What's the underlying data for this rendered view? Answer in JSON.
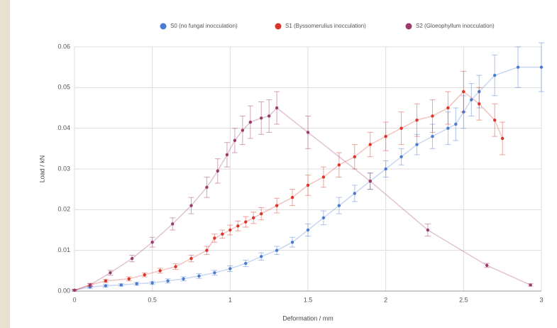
{
  "chart_data": {
    "type": "scatter",
    "xlabel": "Deformation / mm",
    "ylabel": "Load / kN",
    "xlim": [
      0,
      3
    ],
    "ylim": [
      0,
      0.06
    ],
    "xticks": [
      0,
      0.5,
      1,
      1.5,
      2,
      2.5,
      3
    ],
    "yticks": [
      {
        "value": 0,
        "label": "0.00"
      },
      {
        "value": 0.01,
        "label": "0.01"
      },
      {
        "value": 0.02,
        "label": "0.02"
      },
      {
        "value": 0.03,
        "label": "0.03"
      },
      {
        "value": 0.04,
        "label": "0.04"
      },
      {
        "value": 0.05,
        "label": "0.05"
      },
      {
        "value": 0.06,
        "label": "0.06"
      }
    ],
    "grid": true,
    "series": [
      {
        "name": "S0 (no fungal inocculation)",
        "color": "#4a7bd0",
        "x": [
          0,
          0.1,
          0.2,
          0.3,
          0.4,
          0.5,
          0.6,
          0.7,
          0.8,
          0.9,
          1.0,
          1.1,
          1.2,
          1.3,
          1.4,
          1.5,
          1.6,
          1.7,
          1.8,
          1.9,
          2.0,
          2.1,
          2.2,
          2.3,
          2.4,
          2.45,
          2.5,
          2.55,
          2.6,
          2.7,
          2.85,
          3.0
        ],
        "values": [
          0.0002,
          0.001,
          0.0013,
          0.0015,
          0.0018,
          0.002,
          0.0025,
          0.003,
          0.0037,
          0.0045,
          0.0055,
          0.0068,
          0.0085,
          0.01,
          0.012,
          0.015,
          0.018,
          0.021,
          0.024,
          0.027,
          0.03,
          0.033,
          0.036,
          0.038,
          0.04,
          0.041,
          0.044,
          0.047,
          0.049,
          0.053,
          0.055,
          0.055
        ],
        "errors": [
          0.0002,
          0.0003,
          0.0003,
          0.0003,
          0.0004,
          0.0004,
          0.0005,
          0.0005,
          0.0006,
          0.0006,
          0.0007,
          0.0008,
          0.0009,
          0.001,
          0.0012,
          0.0015,
          0.0017,
          0.002,
          0.002,
          0.002,
          0.002,
          0.002,
          0.0025,
          0.003,
          0.004,
          0.004,
          0.004,
          0.004,
          0.004,
          0.005,
          0.005,
          0.006
        ]
      },
      {
        "name": "S1 (Byssomerulius inocculation)",
        "color": "#d9352a",
        "x": [
          0,
          0.1,
          0.2,
          0.35,
          0.45,
          0.55,
          0.65,
          0.75,
          0.85,
          0.9,
          0.95,
          1.0,
          1.05,
          1.1,
          1.15,
          1.2,
          1.3,
          1.4,
          1.5,
          1.6,
          1.7,
          1.8,
          1.9,
          2.0,
          2.1,
          2.2,
          2.3,
          2.4,
          2.5,
          2.6,
          2.7,
          2.75
        ],
        "values": [
          0.0002,
          0.0015,
          0.0025,
          0.003,
          0.004,
          0.005,
          0.006,
          0.008,
          0.01,
          0.013,
          0.014,
          0.015,
          0.016,
          0.017,
          0.018,
          0.019,
          0.021,
          0.023,
          0.026,
          0.028,
          0.031,
          0.033,
          0.036,
          0.038,
          0.04,
          0.042,
          0.043,
          0.045,
          0.049,
          0.046,
          0.042,
          0.0375
        ],
        "errors": [
          0.0002,
          0.0003,
          0.0004,
          0.0005,
          0.0005,
          0.0006,
          0.0007,
          0.0008,
          0.001,
          0.001,
          0.001,
          0.0012,
          0.0012,
          0.0013,
          0.0014,
          0.0015,
          0.0018,
          0.002,
          0.0025,
          0.0025,
          0.003,
          0.003,
          0.003,
          0.0035,
          0.004,
          0.004,
          0.004,
          0.004,
          0.005,
          0.004,
          0.004,
          0.004
        ]
      },
      {
        "name": "S2 (Gloeophyllum inocculation)",
        "color": "#9c3a6a",
        "x": [
          0,
          0.1,
          0.23,
          0.37,
          0.5,
          0.63,
          0.75,
          0.85,
          0.92,
          0.98,
          1.03,
          1.08,
          1.13,
          1.2,
          1.25,
          1.3,
          1.5,
          1.9,
          2.27,
          2.65,
          2.93
        ],
        "values": [
          0.0002,
          0.0015,
          0.0045,
          0.008,
          0.012,
          0.0165,
          0.021,
          0.0255,
          0.0295,
          0.0335,
          0.037,
          0.0395,
          0.0415,
          0.0425,
          0.043,
          0.045,
          0.039,
          0.027,
          0.015,
          0.0063,
          0.0015
        ],
        "errors": [
          0.0002,
          0.0004,
          0.0006,
          0.0008,
          0.0012,
          0.0015,
          0.002,
          0.0025,
          0.003,
          0.003,
          0.003,
          0.0035,
          0.004,
          0.004,
          0.004,
          0.004,
          0.004,
          0.002,
          0.0015,
          0.0005,
          0.0003
        ]
      }
    ]
  }
}
